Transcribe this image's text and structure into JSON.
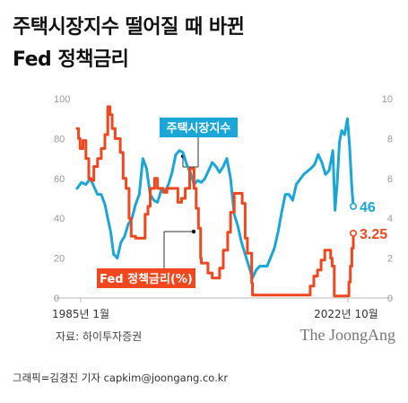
{
  "header": {
    "title_line1": "주택시장지수 떨어질 때 바뀐",
    "title_line2": "Fed 정책금리"
  },
  "footer": {
    "source": "자료: 하이투자증권",
    "brand": "The JoongAng",
    "credit": "그래픽=김경진 기자 capkim@joongang.co.kr"
  },
  "colors": {
    "housing": "#1aa6d6",
    "fed": "#f0471f",
    "axis": "#bbbbbb",
    "annotation_line": "#333333"
  },
  "chart_data": {
    "type": "line",
    "title": "",
    "x_start_label": "1985년 1월",
    "x_end_label": "2022년 10월",
    "x_range": [
      1985.0,
      2022.8
    ],
    "y_left": {
      "range": [
        0,
        100
      ],
      "ticks": [
        "0",
        "20",
        "40",
        "60",
        "80",
        "100"
      ]
    },
    "y_right": {
      "range": [
        0,
        10
      ],
      "ticks": [
        "0",
        "2",
        "4",
        "6",
        "8",
        "10"
      ]
    },
    "grid": false,
    "series": [
      {
        "name": "주택시장지수",
        "axis": "left",
        "end_label": "46",
        "x": [
          1985.0,
          1985.6,
          1986.2,
          1986.8,
          1987.3,
          1987.8,
          1988.3,
          1988.8,
          1989.2,
          1989.6,
          1990.0,
          1990.5,
          1991.0,
          1991.5,
          1992.0,
          1992.5,
          1993.0,
          1993.5,
          1994.0,
          1994.5,
          1995.0,
          1995.5,
          1996.0,
          1996.5,
          1997.0,
          1997.5,
          1998.0,
          1998.5,
          1999.0,
          1999.5,
          2000.0,
          2000.5,
          2001.0,
          2001.5,
          2002.0,
          2002.5,
          2003.0,
          2003.5,
          2004.0,
          2004.5,
          2005.0,
          2005.5,
          2006.0,
          2006.5,
          2007.0,
          2007.5,
          2008.0,
          2008.5,
          2009.0,
          2009.5,
          2010.0,
          2011.0,
          2012.0,
          2012.5,
          2013.0,
          2013.5,
          2014.0,
          2014.5,
          2015.0,
          2016.0,
          2017.0,
          2017.5,
          2018.0,
          2018.5,
          2019.0,
          2019.5,
          2020.0,
          2020.3,
          2020.6,
          2020.9,
          2021.2,
          2021.6,
          2022.0,
          2022.3,
          2022.6,
          2022.8
        ],
        "values": [
          55,
          58,
          57,
          60,
          56,
          52,
          52,
          47,
          40,
          33,
          22,
          20,
          28,
          31,
          37,
          40,
          47,
          52,
          70,
          65,
          52,
          49,
          48,
          54,
          53,
          57,
          63,
          72,
          74,
          73,
          67,
          63,
          57,
          59,
          58,
          60,
          64,
          68,
          66,
          63,
          66,
          70,
          60,
          42,
          36,
          28,
          22,
          16,
          10,
          14,
          16,
          16,
          25,
          33,
          43,
          52,
          52,
          49,
          57,
          62,
          65,
          67,
          72,
          68,
          62,
          64,
          74,
          44,
          58,
          78,
          84,
          82,
          90,
          76,
          55,
          46
        ]
      },
      {
        "name": "Fed 정책금리(%)",
        "axis": "right",
        "end_label": "3.25",
        "x": [
          1985.0,
          1985.2,
          1985.4,
          1985.8,
          1986.2,
          1986.6,
          1986.9,
          1987.3,
          1987.8,
          1988.3,
          1988.8,
          1989.2,
          1989.5,
          1989.8,
          1990.2,
          1990.6,
          1990.9,
          1991.3,
          1991.7,
          1992.1,
          1992.4,
          1993.0,
          1993.9,
          1994.3,
          1994.7,
          1995.0,
          1995.6,
          1996.0,
          1996.8,
          1997.3,
          1998.0,
          1998.8,
          1999.3,
          1999.8,
          2000.4,
          2000.8,
          2001.0,
          2001.3,
          2001.6,
          2001.9,
          2002.0,
          2002.9,
          2003.5,
          2004.0,
          2004.5,
          2005.0,
          2005.6,
          2006.0,
          2006.5,
          2007.0,
          2007.6,
          2008.0,
          2008.3,
          2008.9,
          2009.0,
          2015.9,
          2016.9,
          2017.4,
          2017.9,
          2018.4,
          2018.9,
          2019.4,
          2019.7,
          2019.9,
          2020.1,
          2020.2,
          2022.0,
          2022.2,
          2022.4,
          2022.6,
          2022.8
        ],
        "values": [
          8.5,
          8.0,
          7.5,
          7.9,
          7.0,
          6.0,
          5.9,
          6.6,
          7.0,
          7.5,
          8.2,
          9.6,
          9.2,
          8.5,
          8.0,
          8.0,
          7.3,
          6.0,
          5.5,
          4.0,
          3.1,
          3.0,
          3.0,
          4.2,
          4.6,
          5.5,
          6.0,
          5.5,
          5.3,
          5.5,
          5.5,
          4.8,
          5.0,
          5.5,
          6.5,
          6.5,
          5.5,
          4.5,
          3.5,
          2.0,
          1.75,
          1.25,
          1.0,
          1.0,
          1.5,
          2.4,
          3.3,
          4.3,
          5.25,
          5.25,
          4.75,
          3.0,
          2.25,
          0.75,
          0.15,
          0.15,
          0.6,
          1.1,
          1.4,
          1.9,
          2.4,
          2.4,
          2.0,
          1.6,
          1.6,
          0.1,
          0.1,
          0.8,
          1.6,
          2.5,
          3.25
        ]
      }
    ],
    "annotations": {
      "housing_label": "주택시장지수",
      "fed_label": "Fed 정책금리(%)"
    }
  }
}
